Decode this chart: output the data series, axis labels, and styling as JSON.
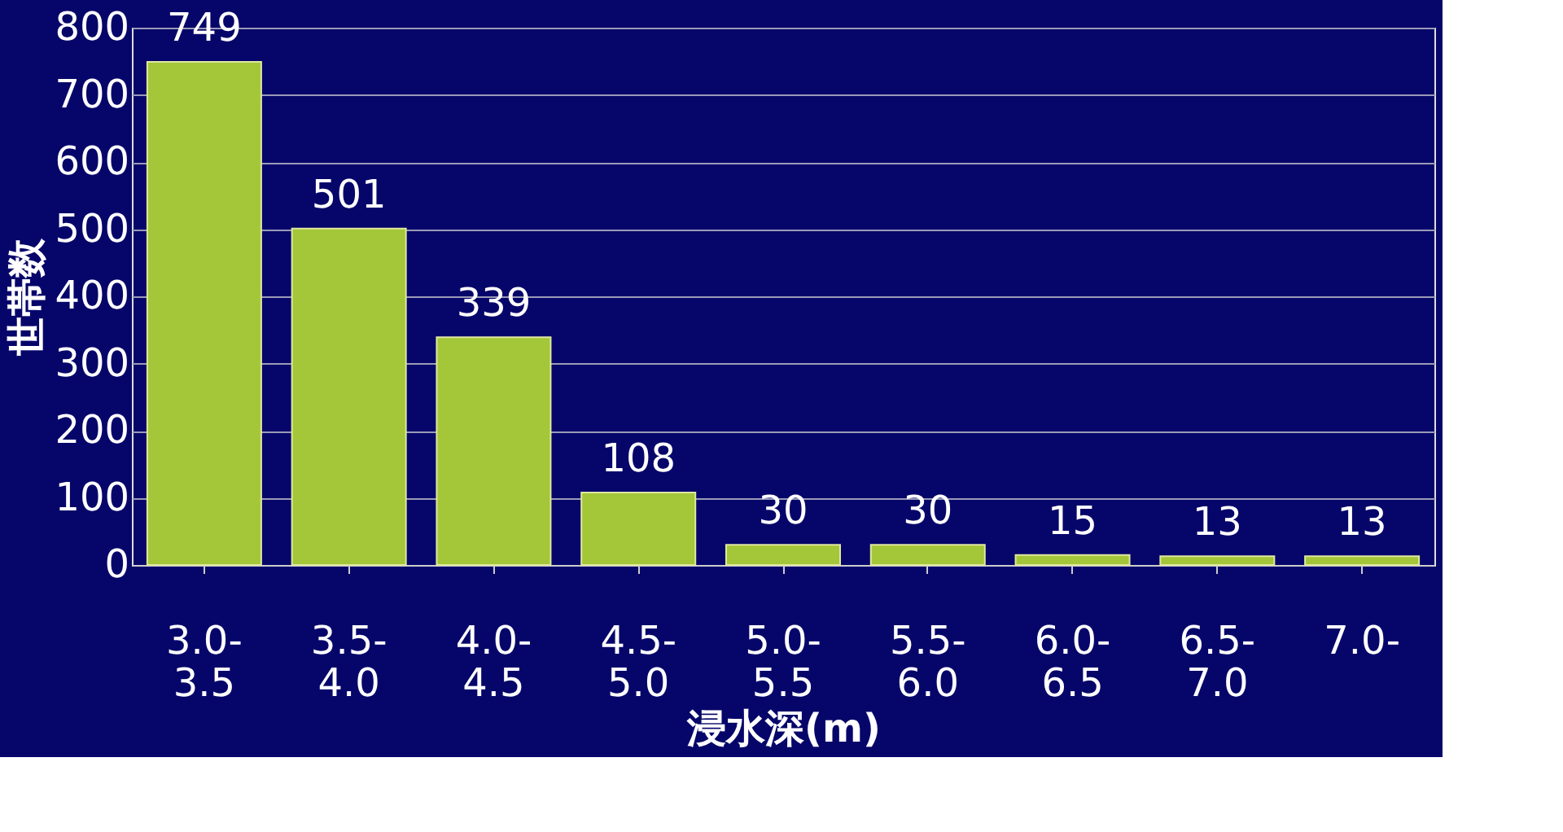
{
  "chart_data": {
    "type": "bar",
    "xlabel": "浸水深(m)",
    "ylabel": "世帯数",
    "categories": [
      "3.0-\n3.5",
      "3.5-\n4.0",
      "4.0-\n4.5",
      "4.5-\n5.0",
      "5.0-\n5.5",
      "5.5-\n6.0",
      "6.0-\n6.5",
      "6.5-\n7.0",
      "7.0-"
    ],
    "values": [
      749,
      501,
      339,
      108,
      30,
      30,
      15,
      13,
      13
    ],
    "color": "#a4c639",
    "ylim": [
      0,
      800
    ],
    "yticks": [
      0,
      100,
      200,
      300,
      400,
      500,
      600,
      700,
      800
    ],
    "grid": "y",
    "data_labels": true
  }
}
